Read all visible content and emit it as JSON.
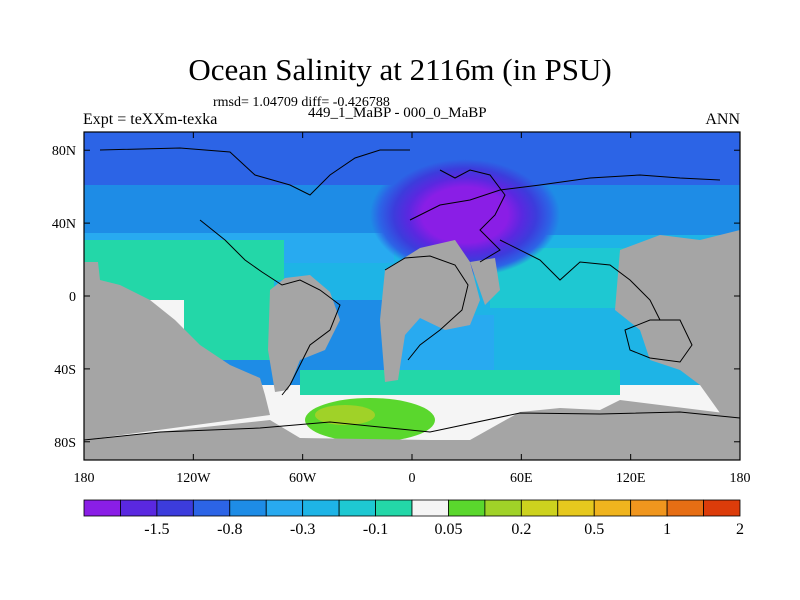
{
  "chart_data": {
    "type": "heatmap",
    "title": "Ocean Salinity at 2116m (in PSU)",
    "stats": "rmsd= 1.04709 diff= -0.426788",
    "experiment": "Expt = teXXm-texka",
    "difference": "449_1_MaBP - 000_0_MaBP",
    "season": "ANN",
    "x_ticks": [
      {
        "value": -180,
        "label": "180"
      },
      {
        "value": -120,
        "label": "120W"
      },
      {
        "value": -60,
        "label": "60W"
      },
      {
        "value": 0,
        "label": "0"
      },
      {
        "value": 60,
        "label": "60E"
      },
      {
        "value": 120,
        "label": "120E"
      },
      {
        "value": 180,
        "label": "180"
      }
    ],
    "y_ticks": [
      {
        "value": 80,
        "label": "80N"
      },
      {
        "value": 40,
        "label": "40N"
      },
      {
        "value": 0,
        "label": "0"
      },
      {
        "value": -40,
        "label": "40S"
      },
      {
        "value": -80,
        "label": "80S"
      }
    ],
    "xlim": [
      -180,
      180
    ],
    "ylim": [
      -90,
      90
    ],
    "colorbar": {
      "colors": [
        "#8a1ee6",
        "#5a28e0",
        "#3c3cdc",
        "#2c64e6",
        "#1e8ce6",
        "#28aaf0",
        "#1eb4e6",
        "#1ec8d2",
        "#23d7a8",
        "#f5f5f5",
        "#5ad72d",
        "#a0d228",
        "#cdd21e",
        "#e6c81e",
        "#f0b41e",
        "#f0961e",
        "#e66e14",
        "#dc3c0a"
      ],
      "tick_labels": [
        {
          "after_index": 1,
          "label": "-1.5"
        },
        {
          "after_index": 3,
          "label": "-0.8"
        },
        {
          "after_index": 5,
          "label": "-0.3"
        },
        {
          "after_index": 7,
          "label": "-0.1"
        },
        {
          "after_index": 9,
          "label": "0.05"
        },
        {
          "after_index": 11,
          "label": "0.2"
        },
        {
          "after_index": 13,
          "label": "0.5"
        },
        {
          "after_index": 15,
          "label": "1"
        },
        {
          "after_index": 17,
          "label": "2"
        }
      ]
    },
    "land_color": "#a5a5a5"
  }
}
